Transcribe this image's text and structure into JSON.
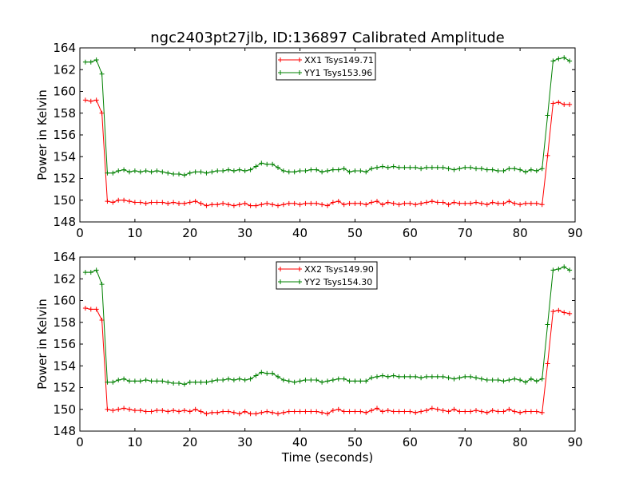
{
  "chart_data": [
    {
      "type": "line",
      "title": "ngc2403pt27jlb, ID:136897 Calibrated Amplitude",
      "xlabel": "",
      "ylabel": "Power in Kelvin",
      "xlim": [
        0,
        90
      ],
      "ylim": [
        148,
        164
      ],
      "xticks": [
        "0",
        "10",
        "20",
        "30",
        "40",
        "50",
        "60",
        "70",
        "80",
        "90"
      ],
      "yticks": [
        "148",
        "150",
        "152",
        "154",
        "156",
        "158",
        "160",
        "162",
        "164"
      ],
      "legend_position": "top-center",
      "x": [
        1,
        2,
        3,
        4,
        5,
        6,
        7,
        8,
        9,
        10,
        11,
        12,
        13,
        14,
        15,
        16,
        17,
        18,
        19,
        20,
        21,
        22,
        23,
        24,
        25,
        26,
        27,
        28,
        29,
        30,
        31,
        32,
        33,
        34,
        35,
        36,
        37,
        38,
        39,
        40,
        41,
        42,
        43,
        44,
        45,
        46,
        47,
        48,
        49,
        50,
        51,
        52,
        53,
        54,
        55,
        56,
        57,
        58,
        59,
        60,
        61,
        62,
        63,
        64,
        65,
        66,
        67,
        68,
        69,
        70,
        71,
        72,
        73,
        74,
        75,
        76,
        77,
        78,
        79,
        80,
        81,
        82,
        83,
        84,
        85,
        86,
        87,
        88,
        89
      ],
      "series": [
        {
          "name": "XX1 Tsys149.71",
          "color": "#ff0000",
          "values": [
            159.2,
            159.1,
            159.2,
            158.0,
            149.9,
            149.8,
            150.0,
            150.0,
            149.9,
            149.8,
            149.8,
            149.7,
            149.8,
            149.8,
            149.8,
            149.7,
            149.8,
            149.7,
            149.7,
            149.8,
            149.9,
            149.7,
            149.5,
            149.6,
            149.6,
            149.7,
            149.6,
            149.5,
            149.6,
            149.7,
            149.5,
            149.5,
            149.6,
            149.7,
            149.6,
            149.5,
            149.6,
            149.7,
            149.7,
            149.6,
            149.7,
            149.7,
            149.7,
            149.6,
            149.5,
            149.8,
            149.9,
            149.6,
            149.7,
            149.7,
            149.7,
            149.6,
            149.8,
            149.9,
            149.6,
            149.8,
            149.7,
            149.6,
            149.7,
            149.7,
            149.6,
            149.7,
            149.8,
            149.9,
            149.8,
            149.8,
            149.6,
            149.8,
            149.7,
            149.7,
            149.7,
            149.8,
            149.7,
            149.6,
            149.8,
            149.7,
            149.7,
            149.9,
            149.7,
            149.6,
            149.7,
            149.7,
            149.7,
            149.6,
            154.1,
            158.9,
            159.0,
            158.8,
            158.8
          ]
        },
        {
          "name": "YY1 Tsys153.96",
          "color": "#008000",
          "values": [
            162.7,
            162.7,
            162.9,
            161.6,
            152.5,
            152.5,
            152.7,
            152.8,
            152.6,
            152.7,
            152.6,
            152.7,
            152.6,
            152.7,
            152.6,
            152.5,
            152.4,
            152.4,
            152.3,
            152.5,
            152.6,
            152.6,
            152.5,
            152.6,
            152.7,
            152.7,
            152.8,
            152.7,
            152.8,
            152.7,
            152.8,
            153.1,
            153.4,
            153.3,
            153.3,
            153.0,
            152.7,
            152.6,
            152.6,
            152.7,
            152.7,
            152.8,
            152.8,
            152.6,
            152.7,
            152.8,
            152.8,
            152.9,
            152.6,
            152.7,
            152.7,
            152.6,
            152.9,
            153.0,
            153.1,
            153.0,
            153.1,
            153.0,
            153.0,
            153.0,
            153.0,
            152.9,
            153.0,
            153.0,
            153.0,
            153.0,
            152.9,
            152.8,
            152.9,
            153.0,
            153.0,
            152.9,
            152.9,
            152.8,
            152.8,
            152.7,
            152.7,
            152.9,
            152.9,
            152.8,
            152.6,
            152.8,
            152.7,
            152.9,
            157.8,
            162.8,
            163.0,
            163.1,
            162.8
          ]
        }
      ]
    },
    {
      "type": "line",
      "title": "",
      "xlabel": "Time (seconds)",
      "ylabel": "Power in Kelvin",
      "xlim": [
        0,
        90
      ],
      "ylim": [
        148,
        164
      ],
      "xticks": [
        "0",
        "10",
        "20",
        "30",
        "40",
        "50",
        "60",
        "70",
        "80",
        "90"
      ],
      "yticks": [
        "148",
        "150",
        "152",
        "154",
        "156",
        "158",
        "160",
        "162",
        "164"
      ],
      "legend_position": "top-center",
      "x": [
        1,
        2,
        3,
        4,
        5,
        6,
        7,
        8,
        9,
        10,
        11,
        12,
        13,
        14,
        15,
        16,
        17,
        18,
        19,
        20,
        21,
        22,
        23,
        24,
        25,
        26,
        27,
        28,
        29,
        30,
        31,
        32,
        33,
        34,
        35,
        36,
        37,
        38,
        39,
        40,
        41,
        42,
        43,
        44,
        45,
        46,
        47,
        48,
        49,
        50,
        51,
        52,
        53,
        54,
        55,
        56,
        57,
        58,
        59,
        60,
        61,
        62,
        63,
        64,
        65,
        66,
        67,
        68,
        69,
        70,
        71,
        72,
        73,
        74,
        75,
        76,
        77,
        78,
        79,
        80,
        81,
        82,
        83,
        84,
        85,
        86,
        87,
        88,
        89
      ],
      "series": [
        {
          "name": "XX2 Tsys149.90",
          "color": "#ff0000",
          "values": [
            159.3,
            159.2,
            159.2,
            158.2,
            150.0,
            149.9,
            150.0,
            150.1,
            150.0,
            149.9,
            149.9,
            149.8,
            149.8,
            149.9,
            149.9,
            149.8,
            149.9,
            149.8,
            149.9,
            149.8,
            150.0,
            149.8,
            149.6,
            149.7,
            149.7,
            149.8,
            149.8,
            149.7,
            149.6,
            149.8,
            149.6,
            149.6,
            149.7,
            149.8,
            149.7,
            149.6,
            149.7,
            149.8,
            149.8,
            149.8,
            149.8,
            149.8,
            149.8,
            149.7,
            149.6,
            149.9,
            150.0,
            149.8,
            149.8,
            149.8,
            149.8,
            149.7,
            149.9,
            150.1,
            149.8,
            149.9,
            149.8,
            149.8,
            149.8,
            149.8,
            149.7,
            149.8,
            149.9,
            150.1,
            150.0,
            149.9,
            149.8,
            150.0,
            149.8,
            149.8,
            149.8,
            149.9,
            149.8,
            149.7,
            149.9,
            149.8,
            149.8,
            150.0,
            149.8,
            149.7,
            149.8,
            149.8,
            149.8,
            149.7,
            154.2,
            159.0,
            159.1,
            158.9,
            158.8
          ]
        },
        {
          "name": "YY2 Tsys154.30",
          "color": "#008000",
          "values": [
            162.6,
            162.6,
            162.8,
            161.5,
            152.5,
            152.5,
            152.7,
            152.8,
            152.6,
            152.6,
            152.6,
            152.7,
            152.6,
            152.6,
            152.6,
            152.5,
            152.4,
            152.4,
            152.3,
            152.5,
            152.5,
            152.5,
            152.5,
            152.6,
            152.7,
            152.7,
            152.8,
            152.7,
            152.8,
            152.7,
            152.8,
            153.1,
            153.4,
            153.3,
            153.3,
            153.0,
            152.7,
            152.6,
            152.5,
            152.6,
            152.7,
            152.7,
            152.7,
            152.5,
            152.6,
            152.7,
            152.8,
            152.8,
            152.6,
            152.6,
            152.6,
            152.6,
            152.9,
            153.0,
            153.1,
            153.0,
            153.1,
            153.0,
            153.0,
            153.0,
            153.0,
            152.9,
            153.0,
            153.0,
            153.0,
            153.0,
            152.9,
            152.8,
            152.9,
            153.0,
            153.0,
            152.9,
            152.8,
            152.7,
            152.7,
            152.7,
            152.6,
            152.7,
            152.8,
            152.7,
            152.5,
            152.8,
            152.6,
            152.8,
            157.8,
            162.8,
            162.9,
            163.1,
            162.8
          ]
        }
      ]
    }
  ]
}
